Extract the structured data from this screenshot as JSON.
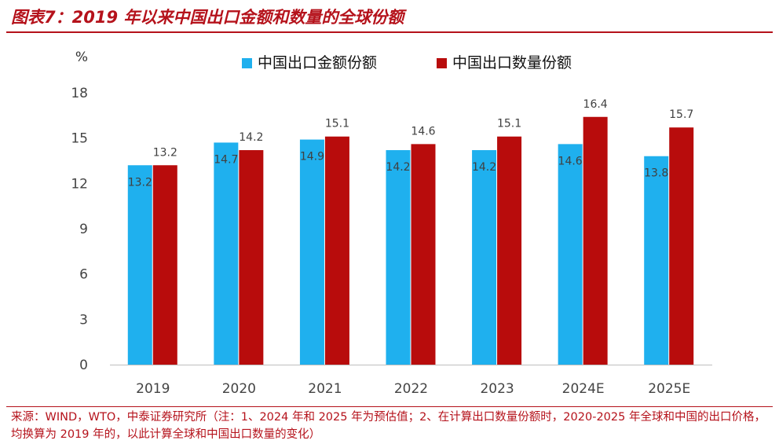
{
  "header": {
    "title": "图表7：2019 年以来中国出口金额和数量的全球份额"
  },
  "footer": {
    "source": "来源：WIND，WTO，中泰证券研究所（注：1、2024 年和 2025 年为预估值；2、在计算出口数量份额时，2020-2025 年全球和中国的出口价格，均换算为 2019 年的，以此计算全球和中国出口数量的变化）"
  },
  "chart_data": {
    "type": "bar",
    "title": "",
    "ylabel": "%",
    "xlabel": "",
    "ylim": [
      0,
      18
    ],
    "yticks": [
      0,
      3,
      6,
      9,
      12,
      15,
      18
    ],
    "categories": [
      "2019",
      "2020",
      "2021",
      "2022",
      "2023",
      "2024E",
      "2025E"
    ],
    "legend_position": "top",
    "grid": false,
    "series": [
      {
        "name": "中国出口金额份额",
        "color": "#1fb0ee",
        "values": [
          13.2,
          14.7,
          14.9,
          14.2,
          14.2,
          14.6,
          13.8
        ]
      },
      {
        "name": "中国出口数量份额",
        "color": "#b80c0c",
        "values": [
          13.2,
          14.2,
          15.1,
          14.6,
          15.1,
          16.4,
          15.7
        ]
      }
    ]
  }
}
